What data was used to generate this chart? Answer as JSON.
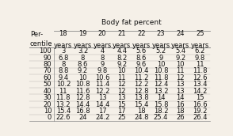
{
  "title": "Body fat percent",
  "col_header_line1": [
    "18",
    "19",
    "20",
    "21",
    "22",
    "23",
    "24",
    "25"
  ],
  "col_header_line2": [
    "years",
    "years",
    "years",
    "years",
    "years",
    "years",
    "years",
    "years"
  ],
  "row_labels": [
    "100",
    "90",
    "80",
    "70",
    "60",
    "50",
    "40",
    "30",
    "20",
    "10",
    "0"
  ],
  "row_header_line1": "Per-",
  "row_header_line2": "centile",
  "data": [
    [
      3,
      3.2,
      4,
      4.4,
      5.6,
      5.2,
      5.4,
      6.2
    ],
    [
      6.8,
      8,
      8,
      8.2,
      8.6,
      9,
      9.2,
      9.8
    ],
    [
      8,
      8.6,
      9,
      9.2,
      9.6,
      10,
      10,
      11
    ],
    [
      8.8,
      9.2,
      9.8,
      10,
      10.4,
      10.8,
      11,
      11.8
    ],
    [
      9.4,
      10,
      10.6,
      11,
      11.2,
      11.8,
      12,
      12.6
    ],
    [
      10.2,
      10.8,
      11.4,
      12,
      12.2,
      12.4,
      13,
      13.4
    ],
    [
      11,
      11.6,
      12.2,
      12,
      12.8,
      13.2,
      13,
      14.2
    ],
    [
      11.8,
      12.8,
      13,
      13,
      13.8,
      14,
      14,
      15
    ],
    [
      13.2,
      14.4,
      14.4,
      15,
      15.4,
      15.8,
      16,
      16.6
    ],
    [
      15.4,
      16.8,
      17,
      17,
      18,
      18.2,
      18,
      19.2
    ],
    [
      22.6,
      24,
      24.2,
      25,
      24.8,
      25.4,
      26,
      26.4
    ]
  ],
  "bg_color": "#f5f0e8",
  "line_color": "#888888",
  "text_color": "#111111",
  "font_size": 6.0
}
